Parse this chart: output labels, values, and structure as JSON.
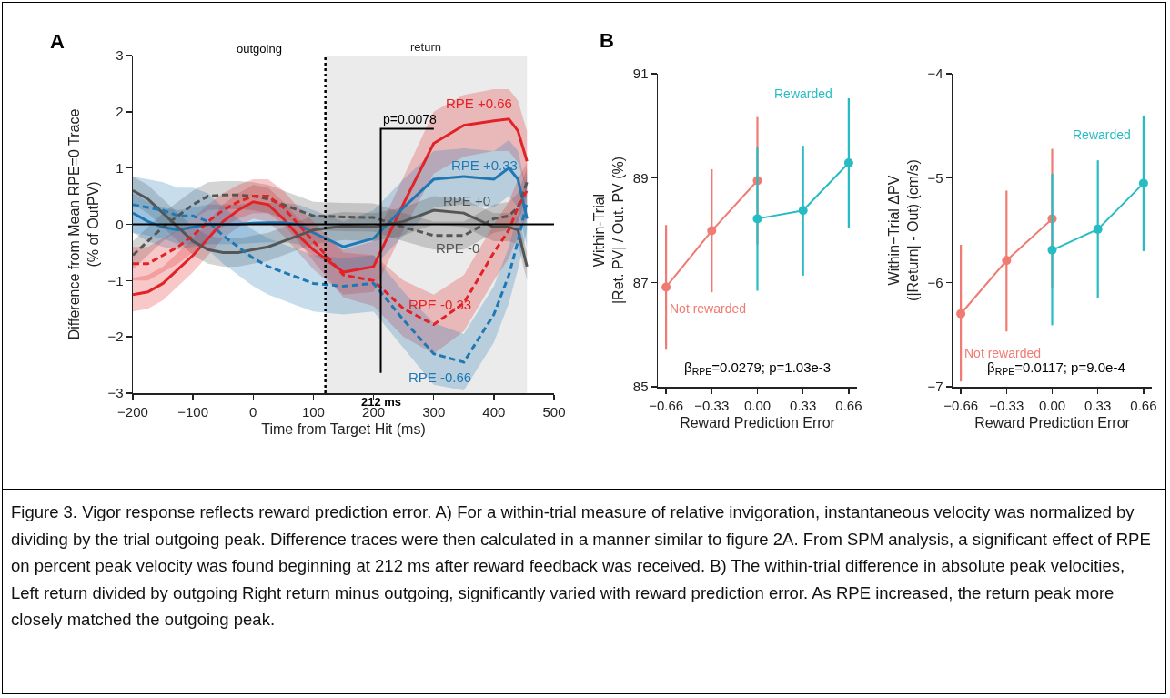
{
  "chart_data": [
    {
      "type": "line",
      "xlabel": "Time from Target Hit (ms)",
      "ylabel": "Difference from Mean RPE=0 Trace\n(% of OutPV)",
      "x": [
        -200,
        -175,
        -150,
        -125,
        -100,
        -75,
        -50,
        -25,
        0,
        25,
        50,
        75,
        100,
        150,
        200,
        250,
        300,
        350,
        400,
        425,
        440,
        455
      ],
      "xlim": [
        -200,
        500
      ],
      "xticks": [
        {
          "value": -200,
          "label": "−200"
        },
        {
          "value": -100,
          "label": "−100"
        },
        0,
        100,
        200,
        300,
        400,
        500
      ],
      "ylim": [
        -3,
        3
      ],
      "yticks": [
        {
          "value": -3,
          "label": "−3"
        },
        {
          "value": -2,
          "label": "−2"
        },
        {
          "value": -1,
          "label": "−1"
        },
        0,
        1,
        2,
        3
      ],
      "grid": false,
      "marker": "none",
      "series": [
        {
          "name": "RPE +0.66",
          "color": "#e32227",
          "line_style": "solid",
          "values": [
            -1.25,
            -1.2,
            -1.05,
            -0.8,
            -0.55,
            -0.25,
            0.05,
            0.25,
            0.4,
            0.35,
            0.1,
            -0.2,
            -0.45,
            -0.85,
            -0.75,
            0.37,
            1.44,
            1.76,
            1.84,
            1.87,
            1.66,
            1.12
          ],
          "lower": [
            -1.55,
            -1.5,
            -1.35,
            -1.1,
            -0.85,
            -0.55,
            -0.25,
            -0.05,
            0.1,
            0.05,
            -0.2,
            -0.5,
            -0.8,
            -1.25,
            -1.2,
            -0.1,
            0.9,
            1.2,
            1.3,
            1.3,
            1.1,
            0.6
          ],
          "upper": [
            -0.95,
            -0.9,
            -0.75,
            -0.5,
            -0.25,
            0.05,
            0.35,
            0.55,
            0.7,
            0.65,
            0.4,
            0.1,
            -0.1,
            -0.45,
            -0.3,
            0.85,
            2.0,
            2.3,
            2.4,
            2.4,
            2.2,
            1.65
          ]
        },
        {
          "name": "RPE +0.33",
          "color": "#1f78b4",
          "line_style": "solid",
          "values": [
            0.2,
            0.05,
            -0.05,
            -0.1,
            -0.05,
            0,
            0,
            0,
            0.02,
            0.03,
            0.03,
            0,
            -0.15,
            -0.4,
            -0.25,
            0.3,
            0.8,
            0.85,
            0.8,
            1.0,
            0.8,
            0.1
          ],
          "lower": [
            -0.15,
            -0.3,
            -0.4,
            -0.45,
            -0.4,
            -0.35,
            -0.35,
            -0.35,
            -0.33,
            -0.32,
            -0.32,
            -0.35,
            -0.55,
            -0.85,
            -0.75,
            -0.2,
            0.3,
            0.35,
            0.3,
            0.5,
            0.3,
            -0.4
          ],
          "upper": [
            0.55,
            0.4,
            0.3,
            0.25,
            0.3,
            0.35,
            0.35,
            0.35,
            0.37,
            0.38,
            0.38,
            0.35,
            0.25,
            0.05,
            0.25,
            0.8,
            1.3,
            1.35,
            1.3,
            1.5,
            1.3,
            0.6
          ]
        },
        {
          "name": "RPE +0",
          "color": "#555555",
          "line_style": "solid",
          "values": [
            0.6,
            0.45,
            0.2,
            -0.05,
            -0.3,
            -0.45,
            -0.5,
            -0.5,
            -0.45,
            -0.4,
            -0.3,
            -0.2,
            -0.1,
            -0.03,
            -0.05,
            0.05,
            0.25,
            0.2,
            -0.05,
            -0.05,
            -0.1,
            -0.75
          ],
          "lower": [
            0.35,
            0.2,
            -0.05,
            -0.3,
            -0.55,
            -0.7,
            -0.75,
            -0.75,
            -0.7,
            -0.65,
            -0.55,
            -0.45,
            -0.35,
            -0.28,
            -0.3,
            -0.2,
            0.0,
            -0.05,
            -0.3,
            -0.3,
            -0.35,
            -1.0
          ],
          "upper": [
            0.85,
            0.7,
            0.45,
            0.2,
            -0.05,
            -0.2,
            -0.25,
            -0.25,
            -0.2,
            -0.15,
            -0.05,
            0.05,
            0.15,
            0.22,
            0.2,
            0.3,
            0.5,
            0.45,
            0.2,
            0.2,
            0.15,
            -0.5
          ]
        },
        {
          "name": "RPE -0",
          "color": "#555555",
          "line_style": "dashed",
          "values": [
            -0.55,
            -0.3,
            -0.05,
            0.15,
            0.35,
            0.5,
            0.52,
            0.52,
            0.5,
            0.45,
            0.35,
            0.25,
            0.15,
            0.13,
            0.12,
            -0.05,
            -0.2,
            -0.2,
            0.1,
            0.15,
            0.3,
            0.75
          ],
          "lower": [
            -0.8,
            -0.55,
            -0.3,
            -0.1,
            0.1,
            0.25,
            0.27,
            0.27,
            0.25,
            0.2,
            0.1,
            0.0,
            -0.1,
            -0.12,
            -0.13,
            -0.3,
            -0.45,
            -0.45,
            -0.15,
            -0.1,
            0.05,
            0.5
          ],
          "upper": [
            -0.3,
            -0.05,
            0.2,
            0.4,
            0.6,
            0.75,
            0.77,
            0.77,
            0.75,
            0.7,
            0.6,
            0.5,
            0.4,
            0.38,
            0.37,
            0.2,
            0.05,
            0.05,
            0.35,
            0.4,
            0.55,
            1.0
          ]
        },
        {
          "name": "RPE -0.33",
          "color": "#e32227",
          "line_style": "dashed",
          "values": [
            -0.7,
            -0.7,
            -0.55,
            -0.4,
            -0.2,
            0.05,
            0.25,
            0.4,
            0.5,
            0.5,
            0.3,
            0.0,
            -0.3,
            -0.9,
            -1.0,
            -1.5,
            -1.78,
            -1.4,
            -0.5,
            -0.1,
            0.3,
            0.6
          ],
          "lower": [
            -1.0,
            -1.0,
            -0.85,
            -0.7,
            -0.5,
            -0.25,
            -0.05,
            0.1,
            0.2,
            0.2,
            0.0,
            -0.3,
            -0.65,
            -1.3,
            -1.45,
            -2.0,
            -2.3,
            -1.9,
            -1.0,
            -0.6,
            -0.2,
            0.1
          ],
          "upper": [
            -0.4,
            -0.4,
            -0.25,
            -0.1,
            0.1,
            0.35,
            0.55,
            0.7,
            0.8,
            0.8,
            0.6,
            0.3,
            0.05,
            -0.5,
            -0.55,
            -1.0,
            -1.25,
            -0.9,
            0.0,
            0.4,
            0.8,
            1.1
          ]
        },
        {
          "name": "RPE -0.66",
          "color": "#1f78b4",
          "line_style": "dashed",
          "values": [
            0.35,
            0.3,
            0.25,
            0.15,
            0.15,
            0.05,
            -0.2,
            -0.4,
            -0.6,
            -0.75,
            -0.85,
            -0.95,
            -1.05,
            -1.1,
            -1.05,
            -1.7,
            -2.3,
            -2.45,
            -1.6,
            -0.9,
            -0.3,
            0.4
          ],
          "lower": [
            -0.15,
            -0.2,
            -0.25,
            -0.35,
            -0.35,
            -0.45,
            -0.7,
            -0.9,
            -1.1,
            -1.25,
            -1.35,
            -1.45,
            -1.55,
            -1.6,
            -1.55,
            -2.2,
            -2.85,
            -2.95,
            -2.1,
            -1.4,
            -0.8,
            -0.1
          ],
          "upper": [
            0.85,
            0.8,
            0.75,
            0.65,
            0.65,
            0.55,
            0.3,
            0.1,
            -0.1,
            -0.25,
            -0.35,
            -0.45,
            -0.55,
            -0.6,
            -0.55,
            -1.2,
            -1.75,
            -1.95,
            -1.1,
            -0.4,
            0.2,
            0.9
          ]
        }
      ],
      "ref_lines": [
        {
          "axis": "y",
          "value": 0,
          "color": "#000000",
          "line_style": "solid"
        },
        {
          "axis": "x",
          "value": 120,
          "color": "#000000",
          "line_style": "dotted"
        },
        {
          "axis": "x",
          "value": 212,
          "label": "212 ms",
          "color": "#000000",
          "line_style": "solid"
        }
      ],
      "bands": [
        {
          "axis": "x",
          "from": 120,
          "to": 455,
          "label": "return",
          "color": "#ebebeb"
        }
      ],
      "annotations": [
        "A",
        "outgoing",
        {
          "text": "p=0.0078",
          "x": 212,
          "y": 1.7
        }
      ]
    },
    {
      "type": "line",
      "xlabel": "Reward Prediction Error",
      "ylabel": "Within-Trial\n|Ret. PV| / Out. PV (%)",
      "xlim": [
        -0.72,
        0.72
      ],
      "xticks": [
        {
          "value": -0.66,
          "label": "−0.66"
        },
        {
          "value": -0.33,
          "label": "−0.33"
        },
        {
          "value": 0,
          "label": "0.00"
        },
        0.33,
        0.66
      ],
      "ylim": [
        85,
        91
      ],
      "yticks": [
        85,
        87,
        89,
        91
      ],
      "grid": false,
      "marker": "circle",
      "series": [
        {
          "name": "Not rewarded",
          "color": "#f07b72",
          "x": [
            -0.66,
            -0.33,
            0
          ],
          "values": [
            86.91,
            87.99,
            88.95
          ],
          "errors": [
            [
              85.71,
              88.1
            ],
            [
              86.81,
              89.17
            ],
            [
              87.73,
              90.17
            ]
          ]
        },
        {
          "name": "Rewarded",
          "color": "#27bcc4",
          "x": [
            0,
            0.33,
            0.66
          ],
          "values": [
            88.22,
            88.38,
            89.29
          ],
          "errors": [
            [
              86.84,
              89.59
            ],
            [
              87.13,
              89.62
            ],
            [
              88.04,
              90.53
            ]
          ]
        }
      ],
      "annotations": [
        "B",
        "β$_{RPE}$=0.0279; p=1.03e-3"
      ]
    },
    {
      "type": "line",
      "xlabel": "Reward Prediction Error",
      "ylabel": "Within−Trial ΔPV\n(|Return| - Out) (cm/s)",
      "xlim": [
        -0.72,
        0.72
      ],
      "xticks": [
        {
          "value": -0.66,
          "label": "−0.66"
        },
        {
          "value": -0.33,
          "label": "−0.33"
        },
        {
          "value": 0,
          "label": "0.00"
        },
        0.33,
        0.66
      ],
      "ylim": [
        -7,
        -4
      ],
      "yticks": [
        {
          "value": -7,
          "label": "−7"
        },
        {
          "value": -6,
          "label": "−6"
        },
        {
          "value": -5,
          "label": "−5"
        },
        {
          "value": -4,
          "label": "−4"
        }
      ],
      "grid": false,
      "marker": "circle",
      "series": [
        {
          "name": "Not rewarded",
          "color": "#f07b72",
          "x": [
            -0.66,
            -0.33,
            0
          ],
          "values": [
            -6.3,
            -5.79,
            -5.39
          ],
          "errors": [
            [
              -6.95,
              -5.64
            ],
            [
              -6.47,
              -5.12
            ],
            [
              -6.06,
              -4.72
            ]
          ]
        },
        {
          "name": "Rewarded",
          "color": "#27bcc4",
          "x": [
            0,
            0.33,
            0.66
          ],
          "values": [
            -5.69,
            -5.49,
            -5.05
          ],
          "errors": [
            [
              -6.41,
              -4.96
            ],
            [
              -6.15,
              -4.83
            ],
            [
              -5.7,
              -4.4
            ]
          ]
        }
      ],
      "annotations": [
        "β$_{RPE}$=0.0117; p=9.0e-4"
      ]
    },
    {
      "type": "other",
      "annotations": [
        "Figure 3. Vigor response reflects reward prediction error. A) For a within-trial measure of relative invigoration, instantaneous velocity was normalized by dividing by the trial outgoing peak. Difference traces were then calculated in a manner similar to figure 2A. From SPM analysis, a significant effect of RPE on percent peak velocity was found beginning at 212 ms after reward feedback was received. B) The within-trial difference in absolute peak velocities, Left return divided by outgoing Right return minus outgoing, significantly varied with reward prediction error. As RPE increased, the return peak more closely matched the outgoing peak."
      ]
    }
  ]
}
